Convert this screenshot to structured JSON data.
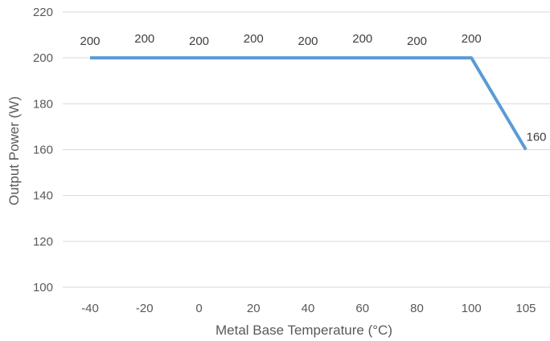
{
  "chart_data": {
    "type": "line",
    "title": "",
    "xlabel": "Metal Base Temperature (°C)",
    "ylabel": "Output Power (W)",
    "categories": [
      "-40",
      "-20",
      "0",
      "20",
      "40",
      "60",
      "80",
      "100",
      "105"
    ],
    "series": [
      {
        "values": [
          200,
          200,
          200,
          200,
          200,
          200,
          200,
          200,
          160
        ],
        "color": "#5B9BD5",
        "data_labels": [
          "200",
          "200",
          "200",
          "200",
          "200",
          "200",
          "200",
          "200",
          "160"
        ]
      }
    ],
    "yticks": [
      "100",
      "120",
      "140",
      "160",
      "180",
      "200",
      "220"
    ],
    "ylim": [
      100,
      220
    ],
    "grid": true,
    "gridline_color": "#D9D9D9",
    "legend": "none"
  }
}
